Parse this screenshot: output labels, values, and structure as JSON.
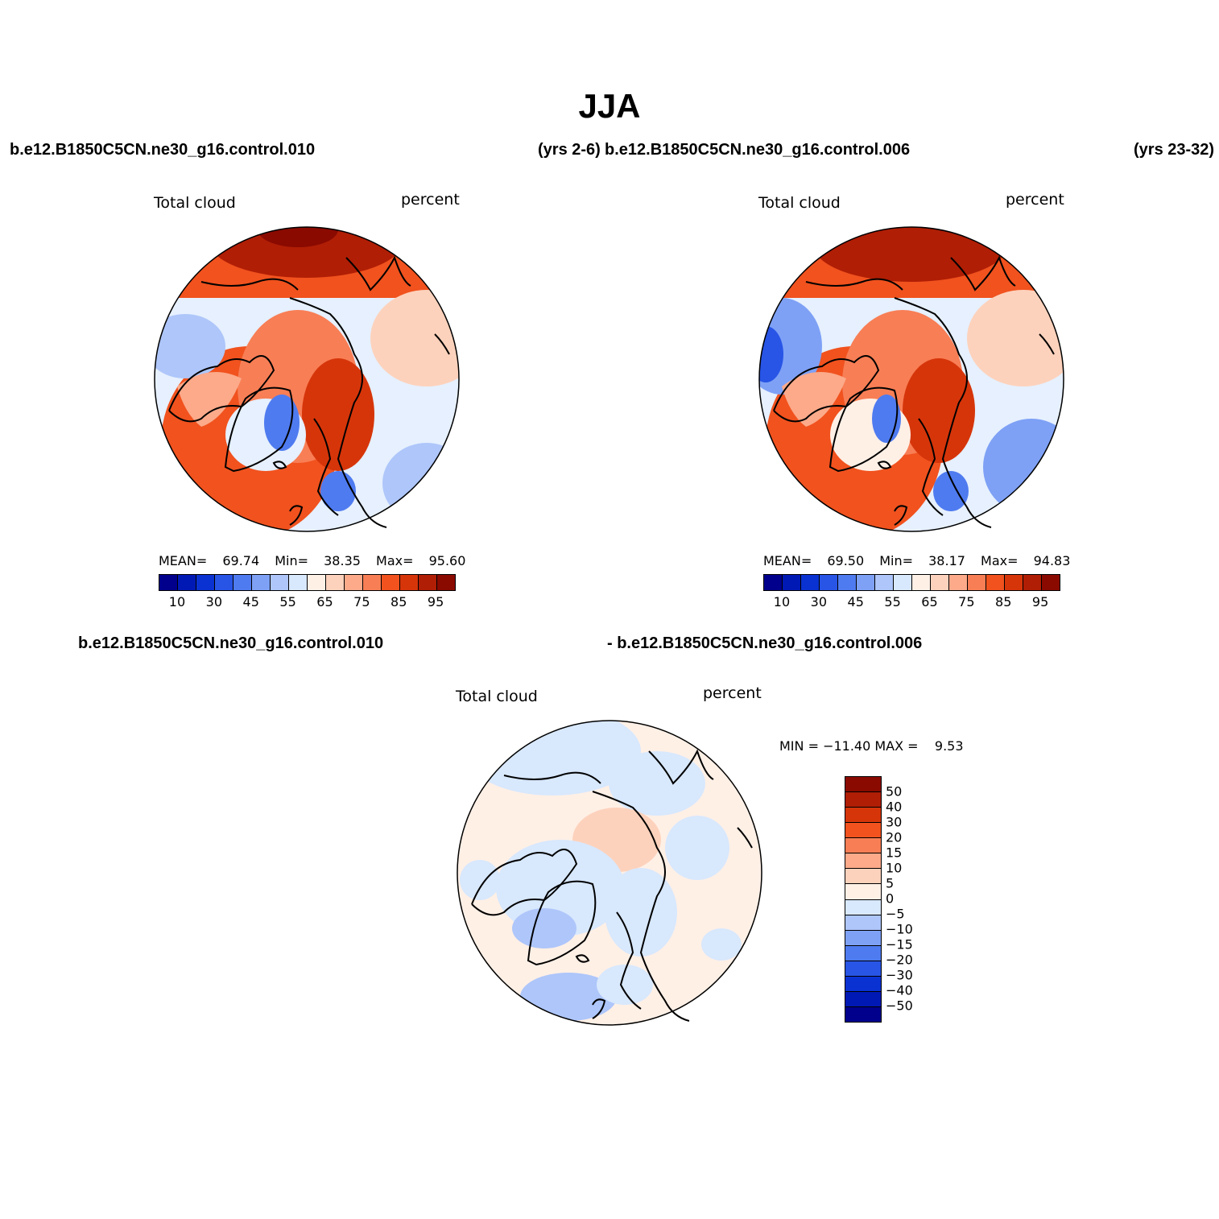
{
  "title": "JJA",
  "panel_a": {
    "case_label": "b.e12.B1850C5CN.ne30_g16.control.010",
    "years_label": "(yrs 2-6)",
    "variable": "Total cloud",
    "units": "percent",
    "mean_label": "MEAN=",
    "mean": "69.74",
    "min_label": "Min=",
    "min": "38.35",
    "max_label": "Max=",
    "max": "95.60"
  },
  "panel_b": {
    "case_label": "b.e12.B1850C5CN.ne30_g16.control.006",
    "years_label": "(yrs 23-32)",
    "variable": "Total cloud",
    "units": "percent",
    "mean_label": "MEAN=",
    "mean": "69.50",
    "min_label": "Min=",
    "min": "38.17",
    "max_label": "Max=",
    "max": "94.83"
  },
  "panel_diff": {
    "case_label_1": "b.e12.B1850C5CN.ne30_g16.control.010",
    "case_label_2": "- b.e12.B1850C5CN.ne30_g16.control.006",
    "variable": "Total cloud",
    "units": "percent",
    "minmax_label": "MIN = −11.40 MAX =    9.53"
  },
  "colorbar_abs": {
    "ticks": [
      "10",
      "30",
      "45",
      "55",
      "65",
      "75",
      "85",
      "95"
    ],
    "colors": [
      "#00008c",
      "#0019b4",
      "#0a32d2",
      "#2855e6",
      "#4f7bf0",
      "#7ea1f6",
      "#aec6fa",
      "#d8e8fd",
      "#fff0e6",
      "#fdd2bc",
      "#fcaa8a",
      "#f87e55",
      "#f1521e",
      "#d6350a",
      "#b01e05",
      "#8a0a00"
    ]
  },
  "colorbar_diff": {
    "ticks": [
      "50",
      "40",
      "30",
      "20",
      "15",
      "10",
      "5",
      "0",
      "−5",
      "−10",
      "−15",
      "−20",
      "−30",
      "−40",
      "−50"
    ],
    "colors": [
      "#8a0a00",
      "#b01e05",
      "#d6350a",
      "#f1521e",
      "#f87e55",
      "#fcaa8a",
      "#fdd2bc",
      "#fff0e6",
      "#d8e8fd",
      "#aec6fa",
      "#7ea1f6",
      "#4f7bf0",
      "#2855e6",
      "#0a32d2",
      "#0019b4",
      "#00008c"
    ]
  }
}
